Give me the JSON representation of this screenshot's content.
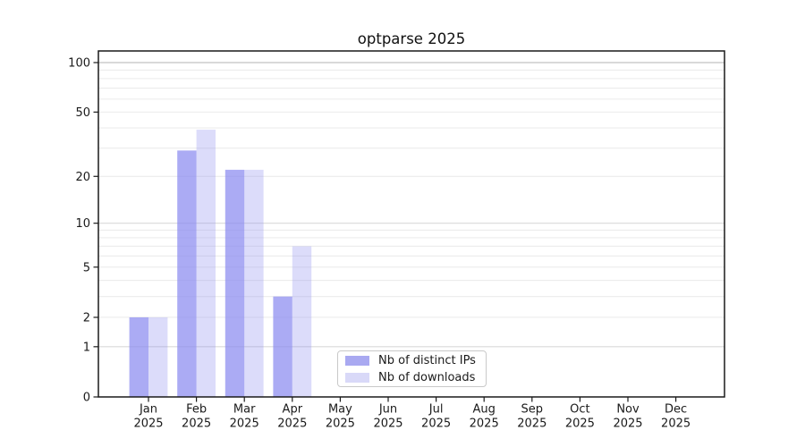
{
  "chart_data": {
    "type": "bar",
    "title": "optparse 2025",
    "categories": [
      "Jan",
      "Feb",
      "Mar",
      "Apr",
      "May",
      "Jun",
      "Jul",
      "Aug",
      "Sep",
      "Oct",
      "Nov",
      "Dec"
    ],
    "year_label": "2025",
    "series": [
      {
        "name": "Nb of distinct IPs",
        "color": "rgba(138,138,240,0.72)",
        "legend_color": "#a9a9f1",
        "values": [
          2,
          29,
          22,
          3,
          0,
          0,
          0,
          0,
          0,
          0,
          0,
          0
        ]
      },
      {
        "name": "Nb of downloads",
        "color": "rgba(138,138,240,0.30)",
        "legend_color": "#d9d9f8",
        "values": [
          2,
          39,
          22,
          7,
          0,
          0,
          0,
          0,
          0,
          0,
          0,
          0
        ]
      }
    ],
    "yscale": "log1p",
    "yticks": [
      0,
      1,
      2,
      5,
      10,
      20,
      50,
      100
    ],
    "minor_gridlines": [
      3,
      4,
      6,
      7,
      8,
      9,
      30,
      40,
      60,
      70,
      80,
      90
    ],
    "ylim": [
      0,
      117
    ],
    "grid": true,
    "legend_position": "lower center-left",
    "colors": {
      "spine": "#1a1a1a",
      "tick_label": "#1a1a1a",
      "grid_minor": "#ececec",
      "grid_major": "#dadada",
      "grid_top": "#b3b3b3"
    }
  }
}
